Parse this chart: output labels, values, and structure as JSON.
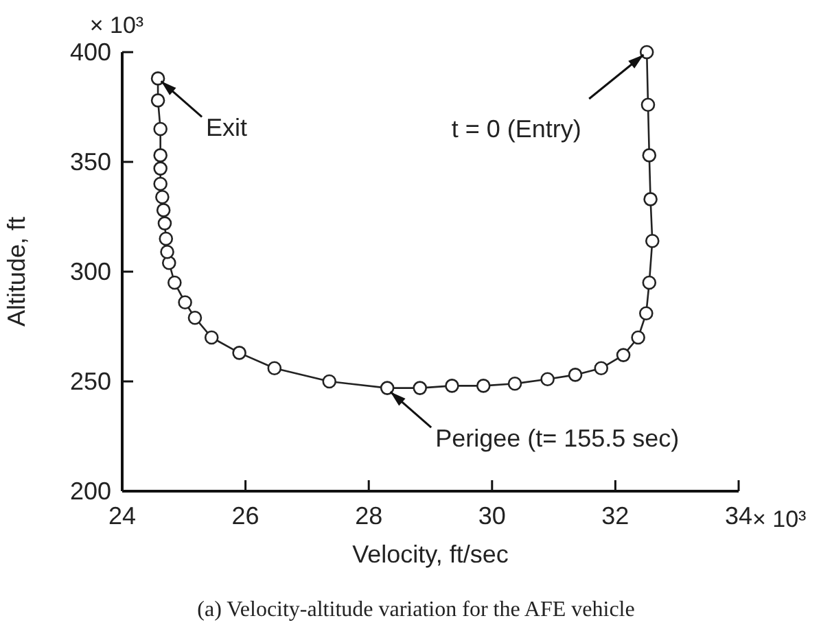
{
  "chart_data": {
    "type": "line",
    "xlabel": "Velocity, ft/sec",
    "ylabel": "Altitude, ft",
    "x": [
      32.51,
      32.53,
      32.55,
      32.57,
      32.6,
      32.55,
      32.5,
      32.37,
      32.13,
      31.77,
      31.35,
      30.9,
      30.37,
      29.86,
      29.35,
      28.83,
      28.3,
      27.36,
      26.47,
      25.9,
      25.45,
      25.18,
      25.02,
      24.85,
      24.76,
      24.73,
      24.71,
      24.69,
      24.67,
      24.65,
      24.62,
      24.62,
      24.62,
      24.62,
      24.58,
      24.58
    ],
    "series": [
      {
        "color": "#222222",
        "values": [
          400,
          376,
          353,
          333,
          314,
          295,
          281,
          270,
          262,
          256,
          253,
          251,
          249,
          248,
          248,
          247,
          247,
          250,
          256,
          263,
          270,
          279,
          286,
          295,
          304,
          309,
          315,
          322,
          328,
          334,
          340,
          347,
          353,
          365,
          378,
          388
        ]
      }
    ],
    "xlim": [
      24,
      34
    ],
    "xticks": [
      {
        "value": 24,
        "label": "24"
      },
      {
        "value": 26,
        "label": "26"
      },
      {
        "value": 28,
        "label": "28"
      },
      {
        "value": 30,
        "label": "30"
      },
      {
        "value": 32,
        "label": "32"
      },
      {
        "value": 34,
        "label": "34"
      }
    ],
    "ylim": [
      200,
      400
    ],
    "yticks": [
      200,
      250,
      300,
      350,
      400
    ],
    "marker": "circle",
    "line_style": "solid",
    "grid": false,
    "annotations": [
      {
        "text": "Exit",
        "x": 24.58,
        "y": 388
      },
      {
        "text": "t = 0 (Entry)",
        "x": 32.51,
        "y": 400
      },
      {
        "text": "Perigee (t= 155.5 sec)",
        "x": 28.3,
        "y": 246.5
      },
      "× 10³",
      "× 10³",
      "(a) Velocity-altitude variation for the AFE vehicle"
    ]
  }
}
